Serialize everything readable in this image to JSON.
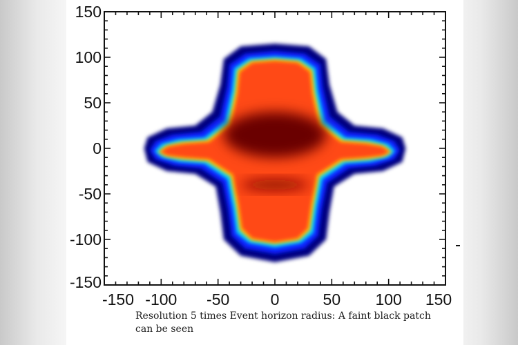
{
  "caption": "Resolution 5 times Event horizon radius: A faint black patch can be seen",
  "chart_data": {
    "type": "heatmap",
    "title": "",
    "xlabel": "",
    "ylabel": "",
    "xlim": [
      -150,
      150
    ],
    "ylim": [
      -150,
      150
    ],
    "x_ticks": [
      -150,
      -100,
      -50,
      0,
      50,
      100,
      150
    ],
    "y_ticks": [
      -150,
      -100,
      -50,
      0,
      50,
      100,
      150
    ],
    "x_tick_labels": [
      "-150",
      "-100",
      "-50",
      "0",
      "50",
      "100",
      "150"
    ],
    "y_tick_labels": [
      "-150",
      "-100",
      "-50",
      "0",
      "50",
      "100",
      "150"
    ],
    "grid": false,
    "legend": "none",
    "colormap": [
      "#000080",
      "#0000ff",
      "#00c0ff",
      "#80ff80",
      "#ffd000",
      "#ff4000",
      "#d02000",
      "#700000"
    ],
    "regions": [
      {
        "name": "outer-halo",
        "level": 0.05,
        "color": "#000080",
        "outline": [
          [
            -115,
            0
          ],
          [
            -112,
            12
          ],
          [
            -95,
            22
          ],
          [
            -70,
            25
          ],
          [
            -55,
            40
          ],
          [
            -48,
            70
          ],
          [
            -45,
            98
          ],
          [
            -30,
            112
          ],
          [
            0,
            115
          ],
          [
            30,
            112
          ],
          [
            45,
            98
          ],
          [
            48,
            70
          ],
          [
            55,
            40
          ],
          [
            70,
            25
          ],
          [
            95,
            22
          ],
          [
            112,
            12
          ],
          [
            115,
            0
          ],
          [
            112,
            -15
          ],
          [
            95,
            -25
          ],
          [
            70,
            -28
          ],
          [
            52,
            -42
          ],
          [
            48,
            -70
          ],
          [
            45,
            -100
          ],
          [
            30,
            -118
          ],
          [
            0,
            -125
          ],
          [
            -30,
            -118
          ],
          [
            -45,
            -100
          ],
          [
            -48,
            -70
          ],
          [
            -52,
            -42
          ],
          [
            -70,
            -28
          ],
          [
            -95,
            -25
          ],
          [
            -112,
            -15
          ]
        ]
      },
      {
        "name": "blue-band",
        "level": 0.15,
        "color": "#1020ff",
        "outline": [
          [
            -110,
            -2
          ],
          [
            -105,
            8
          ],
          [
            -90,
            15
          ],
          [
            -65,
            18
          ],
          [
            -48,
            35
          ],
          [
            -42,
            68
          ],
          [
            -40,
            92
          ],
          [
            -26,
            104
          ],
          [
            0,
            107
          ],
          [
            26,
            104
          ],
          [
            40,
            92
          ],
          [
            42,
            68
          ],
          [
            48,
            35
          ],
          [
            65,
            18
          ],
          [
            90,
            15
          ],
          [
            105,
            8
          ],
          [
            110,
            -2
          ],
          [
            105,
            -12
          ],
          [
            88,
            -19
          ],
          [
            65,
            -22
          ],
          [
            46,
            -38
          ],
          [
            41,
            -68
          ],
          [
            38,
            -96
          ],
          [
            26,
            -110
          ],
          [
            0,
            -116
          ],
          [
            -26,
            -110
          ],
          [
            -38,
            -96
          ],
          [
            -41,
            -68
          ],
          [
            -46,
            -38
          ],
          [
            -65,
            -22
          ],
          [
            -88,
            -19
          ],
          [
            -105,
            -12
          ]
        ]
      },
      {
        "name": "cyan-band",
        "level": 0.3,
        "color": "#00d0ff",
        "outline": [
          [
            -106,
            -3
          ],
          [
            -100,
            5
          ],
          [
            -85,
            10
          ],
          [
            -62,
            12
          ],
          [
            -44,
            30
          ],
          [
            -38,
            64
          ],
          [
            -36,
            88
          ],
          [
            -23,
            99
          ],
          [
            0,
            101
          ],
          [
            23,
            99
          ],
          [
            36,
            88
          ],
          [
            38,
            64
          ],
          [
            44,
            30
          ],
          [
            62,
            12
          ],
          [
            85,
            10
          ],
          [
            100,
            5
          ],
          [
            106,
            -3
          ],
          [
            100,
            -10
          ],
          [
            84,
            -15
          ],
          [
            62,
            -17
          ],
          [
            42,
            -34
          ],
          [
            37,
            -66
          ],
          [
            34,
            -93
          ],
          [
            23,
            -104
          ],
          [
            0,
            -109
          ],
          [
            -23,
            -104
          ],
          [
            -34,
            -93
          ],
          [
            -37,
            -66
          ],
          [
            -42,
            -34
          ],
          [
            -62,
            -17
          ],
          [
            -84,
            -15
          ],
          [
            -100,
            -10
          ]
        ]
      },
      {
        "name": "yellow-band",
        "level": 0.5,
        "color": "#ffd000",
        "outline": [
          [
            -103,
            -4
          ],
          [
            -96,
            3
          ],
          [
            -82,
            7
          ],
          [
            -60,
            9
          ],
          [
            -41,
            27
          ],
          [
            -35,
            62
          ],
          [
            -33,
            86
          ],
          [
            -21,
            96
          ],
          [
            0,
            98
          ],
          [
            21,
            96
          ],
          [
            33,
            86
          ],
          [
            35,
            62
          ],
          [
            41,
            27
          ],
          [
            60,
            9
          ],
          [
            82,
            7
          ],
          [
            96,
            3
          ],
          [
            103,
            -4
          ],
          [
            96,
            -9
          ],
          [
            82,
            -12
          ],
          [
            60,
            -14
          ],
          [
            39,
            -31
          ],
          [
            34,
            -64
          ],
          [
            31,
            -90
          ],
          [
            21,
            -101
          ],
          [
            0,
            -105
          ],
          [
            -21,
            -101
          ],
          [
            -31,
            -90
          ],
          [
            -34,
            -64
          ],
          [
            -39,
            -31
          ],
          [
            -60,
            -14
          ],
          [
            -82,
            -12
          ],
          [
            -96,
            -9
          ]
        ]
      },
      {
        "name": "red-core",
        "level": 0.75,
        "color": "#ff4a14",
        "outline": [
          [
            -101,
            -4
          ],
          [
            -94,
            2
          ],
          [
            -80,
            5
          ],
          [
            -58,
            7
          ],
          [
            -39,
            25
          ],
          [
            -33,
            60
          ],
          [
            -31,
            84
          ],
          [
            -20,
            94
          ],
          [
            0,
            96
          ],
          [
            20,
            94
          ],
          [
            31,
            84
          ],
          [
            33,
            60
          ],
          [
            39,
            25
          ],
          [
            58,
            7
          ],
          [
            80,
            5
          ],
          [
            94,
            2
          ],
          [
            101,
            -4
          ],
          [
            94,
            -8
          ],
          [
            80,
            -10
          ],
          [
            58,
            -12
          ],
          [
            37,
            -29
          ],
          [
            32,
            -62
          ],
          [
            29,
            -88
          ],
          [
            20,
            -99
          ],
          [
            0,
            -103
          ],
          [
            -20,
            -99
          ],
          [
            -29,
            -88
          ],
          [
            -32,
            -62
          ],
          [
            -37,
            -29
          ],
          [
            -58,
            -12
          ],
          [
            -80,
            -10
          ],
          [
            -94,
            -8
          ]
        ]
      },
      {
        "name": "dark-patch-upper",
        "level": 1.0,
        "color": "#6a0000",
        "center": [
          0,
          15
        ],
        "radius": [
          45,
          25
        ]
      },
      {
        "name": "dark-patch-lower",
        "level": 0.9,
        "color": "#8a1000",
        "center": [
          0,
          -40
        ],
        "radius": [
          30,
          6
        ]
      }
    ]
  }
}
